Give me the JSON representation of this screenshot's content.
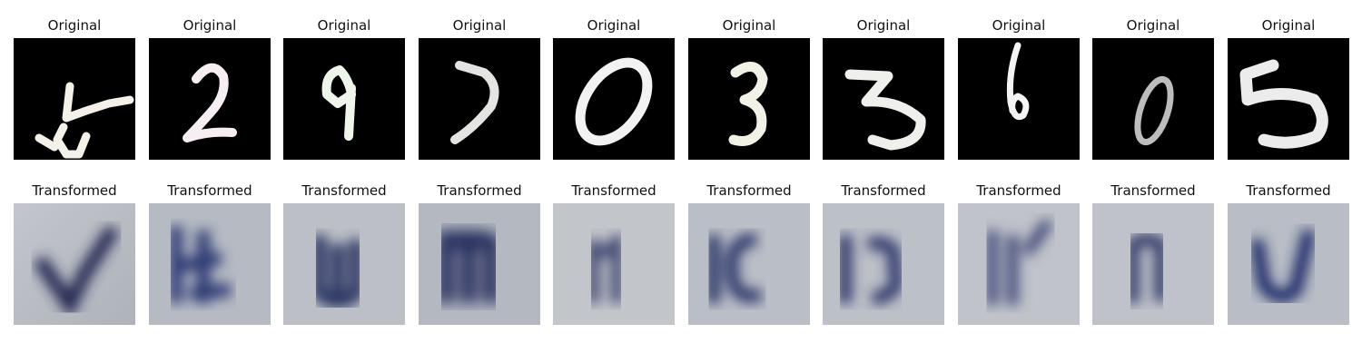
{
  "grid": {
    "top_row_title": "Original",
    "bottom_row_title": "Transformed",
    "columns": [
      {
        "original": {
          "title": "Original",
          "depicts": "5"
        },
        "transformed": {
          "title": "Transformed"
        }
      },
      {
        "original": {
          "title": "Original",
          "depicts": "2"
        },
        "transformed": {
          "title": "Transformed"
        }
      },
      {
        "original": {
          "title": "Original",
          "depicts": "9"
        },
        "transformed": {
          "title": "Transformed"
        }
      },
      {
        "original": {
          "title": "Original",
          "depicts": "7"
        },
        "transformed": {
          "title": "Transformed"
        }
      },
      {
        "original": {
          "title": "Original",
          "depicts": "0"
        },
        "transformed": {
          "title": "Transformed"
        }
      },
      {
        "original": {
          "title": "Original",
          "depicts": "3"
        },
        "transformed": {
          "title": "Transformed"
        }
      },
      {
        "original": {
          "title": "Original",
          "depicts": "3"
        },
        "transformed": {
          "title": "Transformed"
        }
      },
      {
        "original": {
          "title": "Original",
          "depicts": "6"
        },
        "transformed": {
          "title": "Transformed"
        }
      },
      {
        "original": {
          "title": "Original",
          "depicts": "0"
        },
        "transformed": {
          "title": "Transformed"
        }
      },
      {
        "original": {
          "title": "Original",
          "depicts": "5"
        },
        "transformed": {
          "title": "Transformed"
        }
      }
    ]
  },
  "colors": {
    "original_background": "#000000",
    "original_stroke": "#f3f3ee",
    "transformed_background": "#b8bcc4",
    "transformed_ink": "#2a3060"
  }
}
